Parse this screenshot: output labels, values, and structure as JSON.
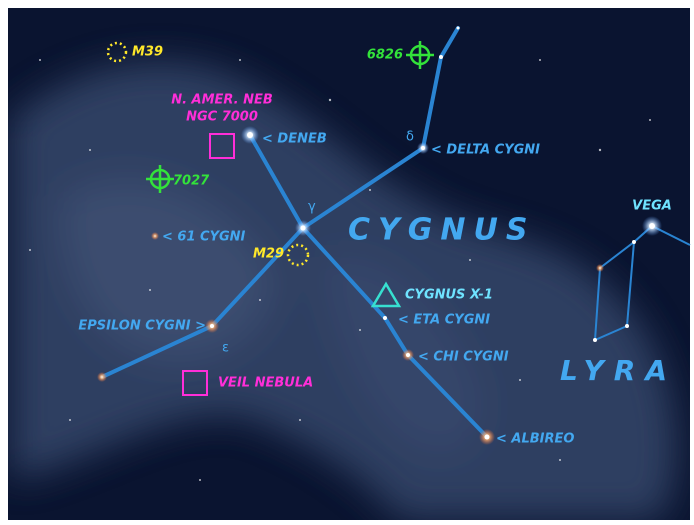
{
  "title": "CYGNUS",
  "labels": [
    "M39",
    "6826",
    "N. AMER. NEB",
    "NGC 7000",
    "< DENEB",
    "δ",
    "< DELTA CYGNI",
    "7027",
    "γ",
    "< 61 CYGNI",
    "M29",
    "VEGA",
    "CYGNUS X-1",
    "< ETA CYGNI",
    "EPSILON CYGNI >",
    "ε",
    "< CHI CYGNI",
    "VEIL NEBULA",
    "LYRA",
    "< ALBIREO"
  ]
}
